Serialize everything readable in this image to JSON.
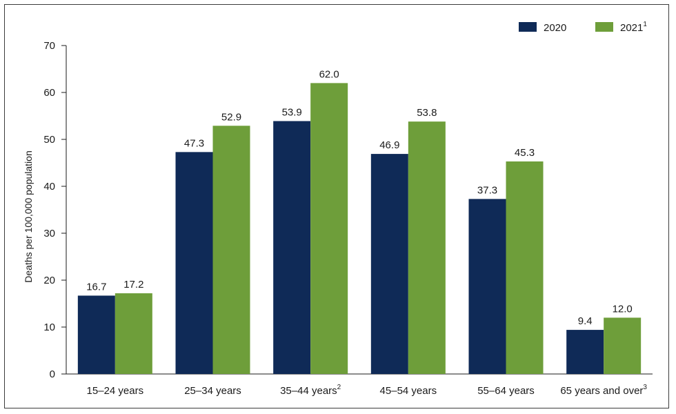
{
  "chart_data": {
    "type": "bar",
    "title": "",
    "xlabel": "",
    "ylabel": "Deaths per 100,000 population",
    "ylim": [
      0,
      70
    ],
    "yticks": [
      0,
      10,
      20,
      30,
      40,
      50,
      60,
      70
    ],
    "grid": false,
    "legend_position": "top-right",
    "categories": [
      {
        "label": "15–24 years",
        "sup": ""
      },
      {
        "label": "25–34 years",
        "sup": ""
      },
      {
        "label": "35–44 years",
        "sup": "2"
      },
      {
        "label": "45–54 years",
        "sup": ""
      },
      {
        "label": "55–64 years",
        "sup": ""
      },
      {
        "label": "65 years and over",
        "sup": "3"
      }
    ],
    "series": [
      {
        "name": "2020",
        "sup": "",
        "color": "#0f2a57",
        "values": [
          16.7,
          47.3,
          53.9,
          46.9,
          37.3,
          9.4
        ],
        "labels": [
          "16.7",
          "47.3",
          "53.9",
          "46.9",
          "37.3",
          "9.4"
        ]
      },
      {
        "name": "2021",
        "sup": "1",
        "color": "#6e9e3a",
        "values": [
          17.2,
          52.9,
          62.0,
          53.8,
          45.3,
          12.0
        ],
        "labels": [
          "17.2",
          "52.9",
          "62.0",
          "53.8",
          "45.3",
          "12.0"
        ]
      }
    ]
  }
}
